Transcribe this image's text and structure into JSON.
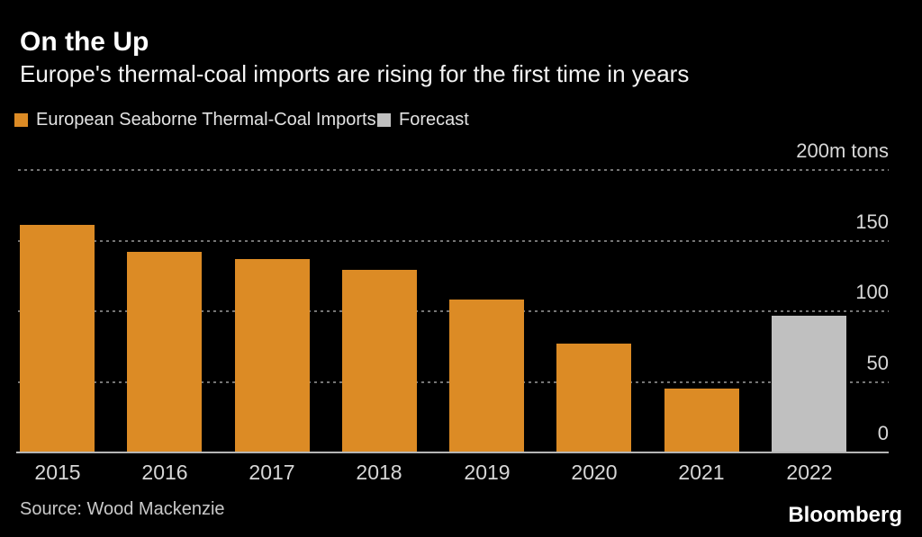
{
  "header": {
    "title": "On the Up",
    "subtitle": "Europe's thermal-coal imports are rising for the first time in years"
  },
  "legend": {
    "items": [
      {
        "label": "European Seaborne Thermal-Coal Imports",
        "color": "#DC8B25"
      },
      {
        "label": "Forecast",
        "color": "#C0C0C0"
      }
    ]
  },
  "chart_data": {
    "type": "bar",
    "title": "On the Up",
    "subtitle": "Europe's thermal-coal imports are rising for the first time in years",
    "categories": [
      "2015",
      "2016",
      "2017",
      "2018",
      "2019",
      "2020",
      "2021",
      "2022"
    ],
    "values": [
      161,
      142,
      137,
      129,
      108,
      77,
      45,
      97
    ],
    "series": [
      {
        "name": "European Seaborne Thermal-Coal Imports",
        "color": "#DC8B25",
        "values": [
          161,
          142,
          137,
          129,
          108,
          77,
          45,
          null
        ]
      },
      {
        "name": "Forecast",
        "color": "#C0C0C0",
        "values": [
          null,
          null,
          null,
          null,
          null,
          null,
          null,
          97
        ]
      }
    ],
    "forecast_category": "2022",
    "unit_label": "200m tons",
    "y_ticks": [
      {
        "value": 200,
        "label": "200m tons"
      },
      {
        "value": 150,
        "label": "150"
      },
      {
        "value": 100,
        "label": "100"
      },
      {
        "value": 50,
        "label": "50"
      },
      {
        "value": 0,
        "label": "0"
      }
    ],
    "ylim": [
      0,
      200
    ],
    "xlabel": "",
    "ylabel": "m tons",
    "grid": "horizontal-dotted",
    "legend_position": "top-left"
  },
  "footer": {
    "source": "Source: Wood Mackenzie",
    "brand": "Bloomberg"
  },
  "colors": {
    "background": "#000000",
    "bar_actual": "#DC8B25",
    "bar_forecast": "#C0C0C0",
    "gridline": "#757575",
    "baseline": "#B5B5B5",
    "title_text": "#FFFFFF",
    "subtitle_text": "#F4F4F4",
    "tick_text": "#D8D8D8",
    "legend_text": "#E2E2E2",
    "source_text": "#C9C9C9",
    "brand_text": "#FFFFFF"
  }
}
